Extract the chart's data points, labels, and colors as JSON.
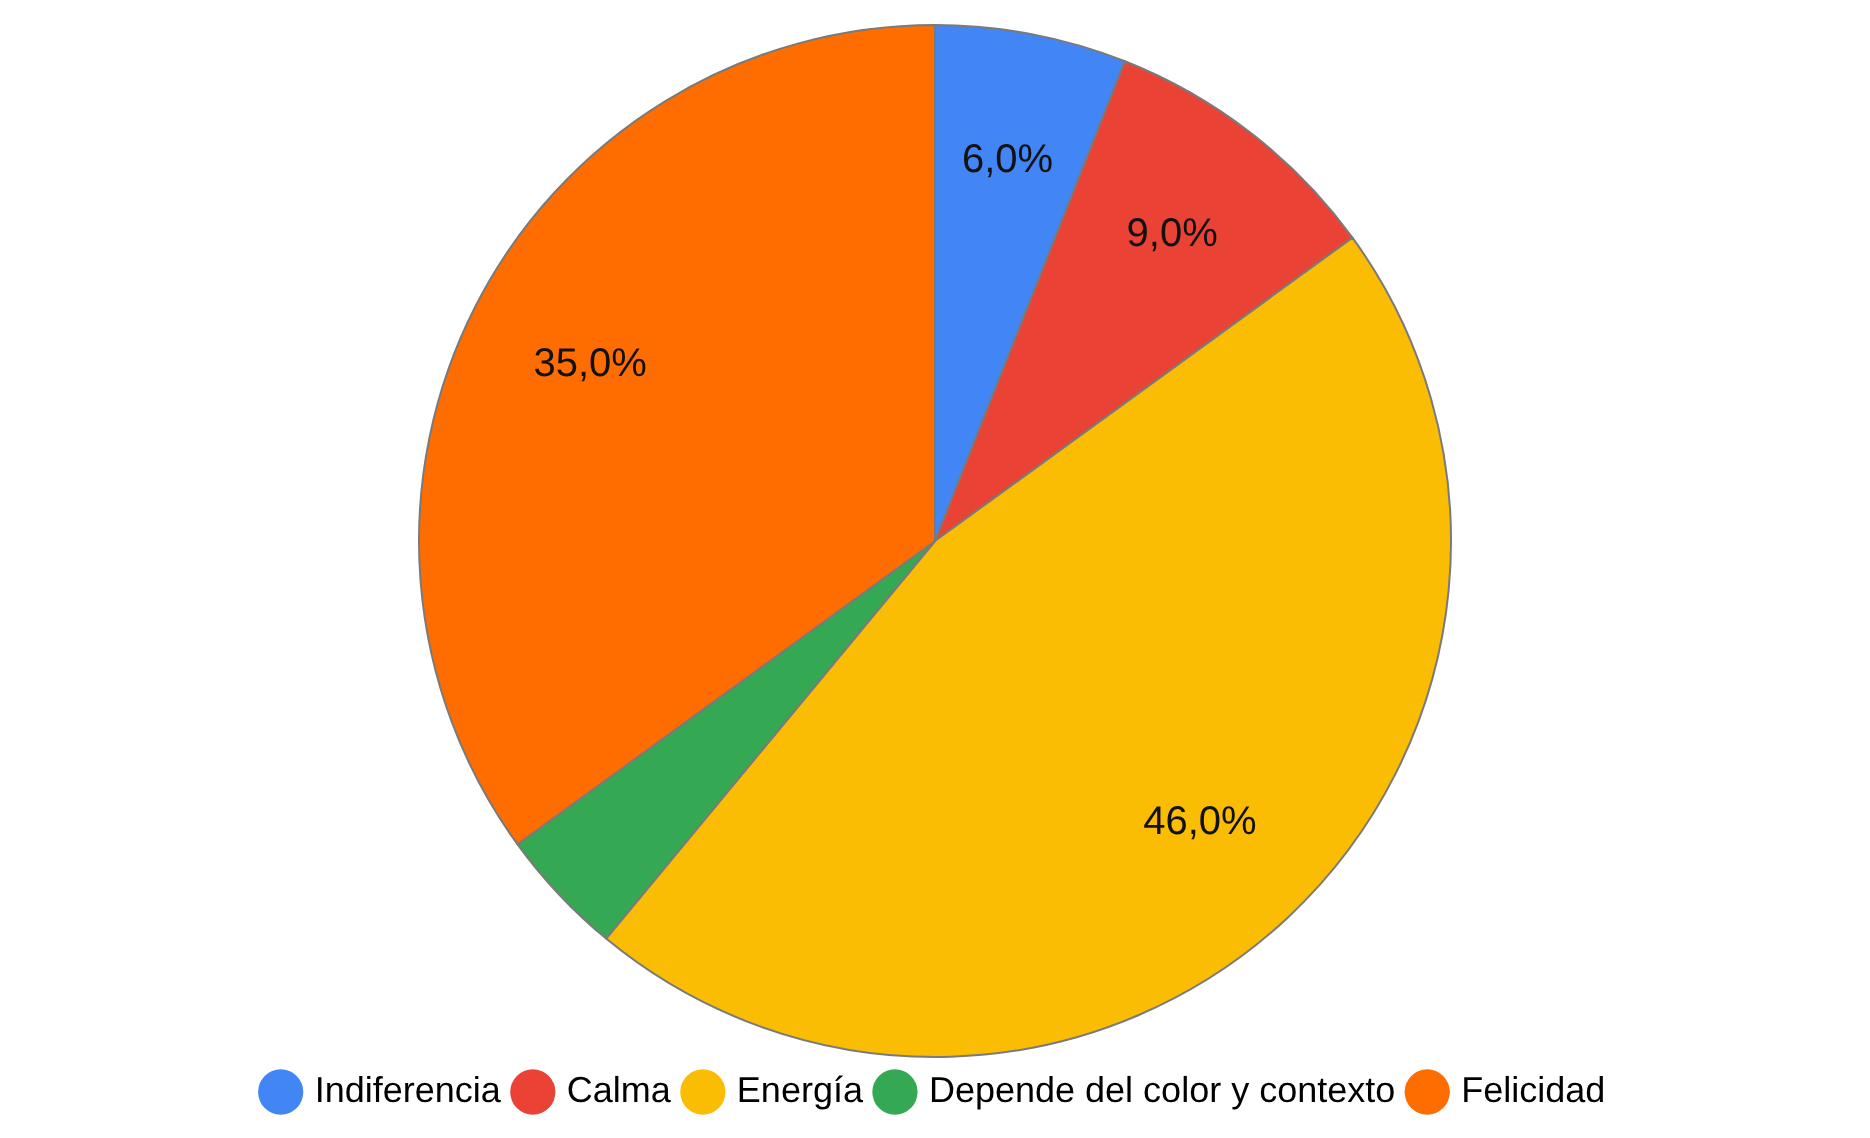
{
  "chart_data": {
    "type": "pie",
    "categories": [
      "Indiferencia",
      "Calma",
      "Energía",
      "Depende del color y contexto",
      "Felicidad"
    ],
    "values": [
      6,
      9,
      46,
      4,
      35
    ],
    "colors": [
      "#4285f4",
      "#ea4335",
      "#fbbc04",
      "#34a853",
      "#ff6d01"
    ],
    "value_labels": [
      "6,0%",
      "9,0%",
      "46,0%",
      null,
      "35,0%"
    ],
    "legend": "bottom"
  }
}
